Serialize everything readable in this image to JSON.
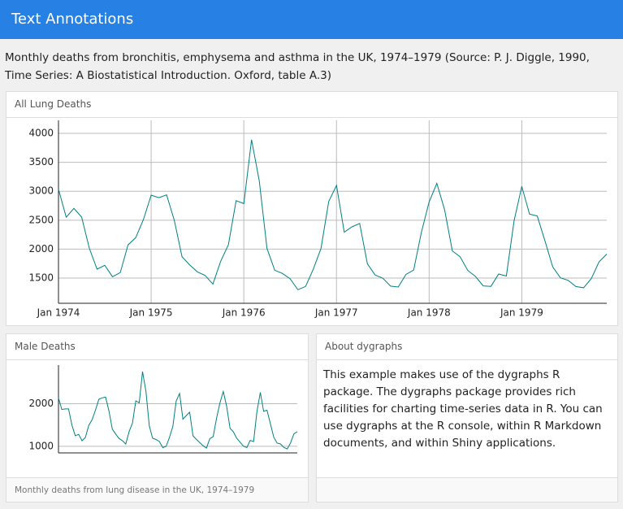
{
  "header": {
    "title": "Text Annotations"
  },
  "description": "Monthly deaths from bronchitis, emphysema and asthma in the UK, 1974–1979 (Source: P. J. Diggle, 1990, Time Series: A Biostatistical Introduction. Oxford, table A.3)",
  "chart_data": [
    {
      "type": "line",
      "title": "All Lung Deaths",
      "color": "#008080",
      "grid": true,
      "x": [
        "1974-01",
        "1974-02",
        "1974-03",
        "1974-04",
        "1974-05",
        "1974-06",
        "1974-07",
        "1974-08",
        "1974-09",
        "1974-10",
        "1974-11",
        "1974-12",
        "1975-01",
        "1975-02",
        "1975-03",
        "1975-04",
        "1975-05",
        "1975-06",
        "1975-07",
        "1975-08",
        "1975-09",
        "1975-10",
        "1975-11",
        "1975-12",
        "1976-01",
        "1976-02",
        "1976-03",
        "1976-04",
        "1976-05",
        "1976-06",
        "1976-07",
        "1976-08",
        "1976-09",
        "1976-10",
        "1976-11",
        "1976-12",
        "1977-01",
        "1977-02",
        "1977-03",
        "1977-04",
        "1977-05",
        "1977-06",
        "1977-07",
        "1977-08",
        "1977-09",
        "1977-10",
        "1977-11",
        "1977-12",
        "1978-01",
        "1978-02",
        "1978-03",
        "1978-04",
        "1978-05",
        "1978-06",
        "1978-07",
        "1978-08",
        "1978-09",
        "1978-10",
        "1978-11",
        "1978-12",
        "1979-01",
        "1979-02",
        "1979-03",
        "1979-04",
        "1979-05",
        "1979-06",
        "1979-07",
        "1979-08",
        "1979-09",
        "1979-10",
        "1979-11",
        "1979-12"
      ],
      "values": [
        3035,
        2552,
        2704,
        2554,
        2014,
        1655,
        1721,
        1524,
        1596,
        2074,
        2199,
        2512,
        2933,
        2889,
        2938,
        2497,
        1870,
        1726,
        1607,
        1545,
        1396,
        1787,
        2076,
        2837,
        2787,
        3891,
        3179,
        2011,
        1636,
        1580,
        1489,
        1300,
        1356,
        1653,
        2013,
        2823,
        3102,
        2294,
        2385,
        2444,
        1748,
        1554,
        1498,
        1361,
        1346,
        1564,
        1640,
        2293,
        2815,
        3137,
        2679,
        1969,
        1870,
        1633,
        1529,
        1366,
        1357,
        1570,
        1535,
        2491,
        3084,
        2605,
        2573,
        2143,
        1693,
        1504,
        1461,
        1354,
        1333,
        1492,
        1781,
        1915
      ],
      "xlim": [
        "1974-01",
        "1979-12"
      ],
      "xticks": [
        {
          "value": "1974-01",
          "label": "Jan 1974"
        },
        {
          "value": "1975-01",
          "label": "Jan 1975"
        },
        {
          "value": "1976-01",
          "label": "Jan 1976"
        },
        {
          "value": "1977-01",
          "label": "Jan 1977"
        },
        {
          "value": "1978-01",
          "label": "Jan 1978"
        },
        {
          "value": "1979-01",
          "label": "Jan 1979"
        }
      ],
      "ylim": [
        1065,
        4225
      ],
      "yticks": [
        1500,
        2000,
        2500,
        3000,
        3500,
        4000
      ]
    },
    {
      "type": "line",
      "title": "Male Deaths",
      "caption": "Monthly deaths from lung disease in the UK, 1974–1979",
      "color": "#008080",
      "grid": true,
      "x": [
        "1974-01",
        "1974-02",
        "1974-03",
        "1974-04",
        "1974-05",
        "1974-06",
        "1974-07",
        "1974-08",
        "1974-09",
        "1974-10",
        "1974-11",
        "1974-12",
        "1975-01",
        "1975-02",
        "1975-03",
        "1975-04",
        "1975-05",
        "1975-06",
        "1975-07",
        "1975-08",
        "1975-09",
        "1975-10",
        "1975-11",
        "1975-12",
        "1976-01",
        "1976-02",
        "1976-03",
        "1976-04",
        "1976-05",
        "1976-06",
        "1976-07",
        "1976-08",
        "1976-09",
        "1976-10",
        "1976-11",
        "1976-12",
        "1977-01",
        "1977-02",
        "1977-03",
        "1977-04",
        "1977-05",
        "1977-06",
        "1977-07",
        "1977-08",
        "1977-09",
        "1977-10",
        "1977-11",
        "1977-12",
        "1978-01",
        "1978-02",
        "1978-03",
        "1978-04",
        "1978-05",
        "1978-06",
        "1978-07",
        "1978-08",
        "1978-09",
        "1978-10",
        "1978-11",
        "1978-12",
        "1979-01",
        "1979-02",
        "1979-03",
        "1979-04",
        "1979-05",
        "1979-06",
        "1979-07",
        "1979-08",
        "1979-09",
        "1979-10",
        "1979-11",
        "1979-12"
      ],
      "values": [
        2134,
        1863,
        1877,
        1877,
        1492,
        1249,
        1280,
        1131,
        1209,
        1492,
        1621,
        1846,
        2103,
        2137,
        2153,
        1833,
        1403,
        1288,
        1186,
        1133,
        1053,
        1347,
        1545,
        2066,
        2020,
        2750,
        2283,
        1479,
        1189,
        1160,
        1113,
        970,
        999,
        1208,
        1467,
        2059,
        2240,
        1634,
        1722,
        1801,
        1246,
        1162,
        1087,
        1013,
        959,
        1179,
        1229,
        1655,
        2019,
        2284,
        1942,
        1423,
        1340,
        1187,
        1098,
        1004,
        970,
        1140,
        1110,
        1812,
        2263,
        1820,
        1846,
        1531,
        1215,
        1075,
        1056,
        975,
        940,
        1081,
        1294,
        1341
      ],
      "xlim": [
        "1974-01",
        "1979-12"
      ],
      "ylim": [
        846,
        2904
      ],
      "yticks": [
        1000,
        2000
      ]
    }
  ],
  "about": {
    "title": "About dygraphs",
    "text": "This example makes use of the dygraphs R package. The dygraphs package provides rich facilities for charting time-series data in R. You can use dygraphs at the R console, within R Markdown documents, and within Shiny applications."
  }
}
